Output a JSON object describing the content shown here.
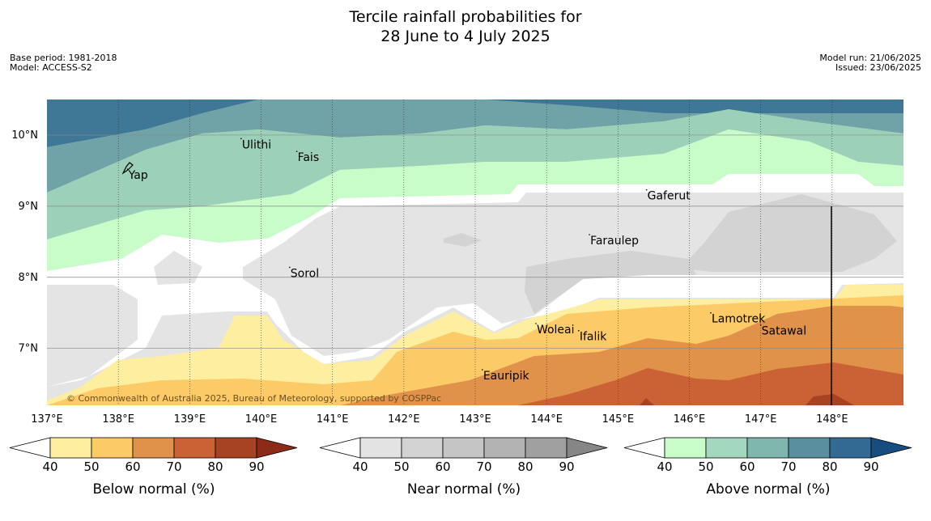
{
  "title": {
    "line1": "Tercile rainfall probabilities for",
    "line2": "28 June to 4 July 2025"
  },
  "info": {
    "base_period": "Base period: 1981-2018",
    "model": "Model: ACCESS-S2",
    "model_run": "Model run: 21/06/2025",
    "issued": "Issued: 23/06/2025"
  },
  "map": {
    "lon_labels": [
      "137°E",
      "138°E",
      "139°E",
      "140°E",
      "141°E",
      "142°E",
      "143°E",
      "144°E",
      "145°E",
      "146°E",
      "147°E",
      "148°E"
    ],
    "lat_labels": [
      "10°N",
      "9°N",
      "8°N",
      "7°N"
    ],
    "places": [
      {
        "name": "Yap",
        "lon": 138.13,
        "lat": 9.52
      },
      {
        "name": "Ulithi",
        "lon": 139.72,
        "lat": 9.95
      },
      {
        "name": "Fais",
        "lon": 140.5,
        "lat": 9.77
      },
      {
        "name": "Gaferut",
        "lon": 145.4,
        "lat": 9.23
      },
      {
        "name": "Faraulep",
        "lon": 144.6,
        "lat": 8.6
      },
      {
        "name": "Sorol",
        "lon": 140.4,
        "lat": 8.14
      },
      {
        "name": "Woleai",
        "lon": 143.85,
        "lat": 7.35
      },
      {
        "name": "Ifalik",
        "lon": 144.45,
        "lat": 7.25
      },
      {
        "name": "Lamotrek",
        "lon": 146.3,
        "lat": 7.5
      },
      {
        "name": "Satawal",
        "lon": 147.0,
        "lat": 7.33
      },
      {
        "name": "Eauripik",
        "lon": 143.1,
        "lat": 6.7
      }
    ],
    "credit": "© Commonwealth of Australia 2025, Bureau of Meteorology, supported by COSPPac"
  },
  "colorbars": [
    {
      "label": "Below normal (%)",
      "ticks": [
        "40",
        "50",
        "60",
        "70",
        "80",
        "90"
      ],
      "colors": [
        "#ffffff",
        "#fdeea0",
        "#fccb67",
        "#e0914a",
        "#cb6236",
        "#a74323",
        "#8b2b18"
      ]
    },
    {
      "label": "Near normal (%)",
      "ticks": [
        "40",
        "50",
        "60",
        "70",
        "80",
        "90"
      ],
      "colors": [
        "#ffffff",
        "#e3e3e3",
        "#d3d3d3",
        "#c5c5c5",
        "#b3b3b3",
        "#a0a0a0",
        "#868686"
      ]
    },
    {
      "label": "Above normal (%)",
      "ticks": [
        "40",
        "50",
        "60",
        "70",
        "80",
        "90"
      ],
      "colors": [
        "#ffffff",
        "#c8fcc8",
        "#a3d8be",
        "#7fb6ae",
        "#5a8f9f",
        "#326a94",
        "#174d80"
      ]
    }
  ]
}
